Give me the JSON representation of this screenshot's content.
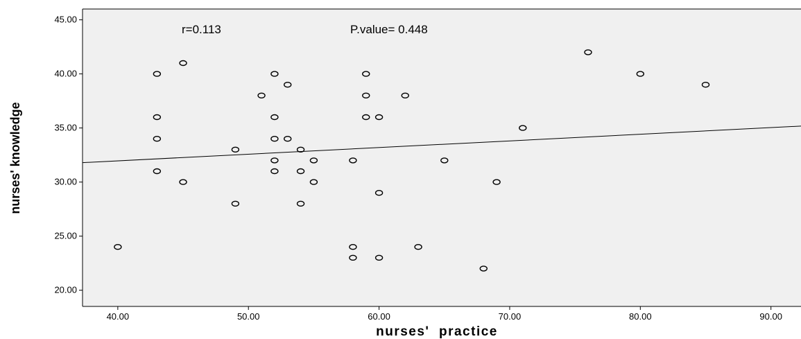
{
  "chart_data": {
    "type": "scatter",
    "xlabel": "nurses'  practice",
    "ylabel": "nurses' knowledge",
    "xlim": [
      37.3,
      92.3
    ],
    "ylim": [
      18.5,
      46.0
    ],
    "x_ticks": [
      40,
      50,
      60,
      70,
      80,
      90
    ],
    "x_tick_labels": [
      "40.00",
      "50.00",
      "60.00",
      "70.00",
      "80.00",
      "90.00"
    ],
    "y_ticks": [
      20,
      25,
      30,
      35,
      40,
      45
    ],
    "y_tick_labels": [
      "20.00",
      "25.00",
      "30.00",
      "35.00",
      "40.00",
      "45.00"
    ],
    "grid": false,
    "annotations": {
      "r": "r=0.113",
      "p_value": "P.value= 0.448"
    },
    "fit_line": {
      "slope": 0.0615,
      "intercept": 29.5
    },
    "points": [
      {
        "x": 40,
        "y": 24
      },
      {
        "x": 43,
        "y": 40
      },
      {
        "x": 43,
        "y": 36
      },
      {
        "x": 43,
        "y": 34
      },
      {
        "x": 43,
        "y": 31
      },
      {
        "x": 45,
        "y": 41
      },
      {
        "x": 45,
        "y": 30
      },
      {
        "x": 49,
        "y": 33
      },
      {
        "x": 49,
        "y": 28
      },
      {
        "x": 51,
        "y": 38
      },
      {
        "x": 52,
        "y": 40
      },
      {
        "x": 52,
        "y": 36
      },
      {
        "x": 52,
        "y": 34
      },
      {
        "x": 52,
        "y": 32
      },
      {
        "x": 52,
        "y": 31
      },
      {
        "x": 53,
        "y": 39
      },
      {
        "x": 53,
        "y": 34
      },
      {
        "x": 54,
        "y": 33
      },
      {
        "x": 54,
        "y": 31
      },
      {
        "x": 54,
        "y": 28
      },
      {
        "x": 55,
        "y": 32
      },
      {
        "x": 55,
        "y": 30
      },
      {
        "x": 58,
        "y": 32
      },
      {
        "x": 58,
        "y": 24
      },
      {
        "x": 58,
        "y": 23
      },
      {
        "x": 59,
        "y": 40
      },
      {
        "x": 59,
        "y": 38
      },
      {
        "x": 59,
        "y": 36
      },
      {
        "x": 60,
        "y": 36
      },
      {
        "x": 60,
        "y": 29
      },
      {
        "x": 60,
        "y": 23
      },
      {
        "x": 62,
        "y": 38
      },
      {
        "x": 63,
        "y": 24
      },
      {
        "x": 65,
        "y": 32
      },
      {
        "x": 68,
        "y": 22
      },
      {
        "x": 69,
        "y": 30
      },
      {
        "x": 71,
        "y": 35
      },
      {
        "x": 76,
        "y": 42
      },
      {
        "x": 80,
        "y": 40
      },
      {
        "x": 85,
        "y": 39
      }
    ]
  }
}
